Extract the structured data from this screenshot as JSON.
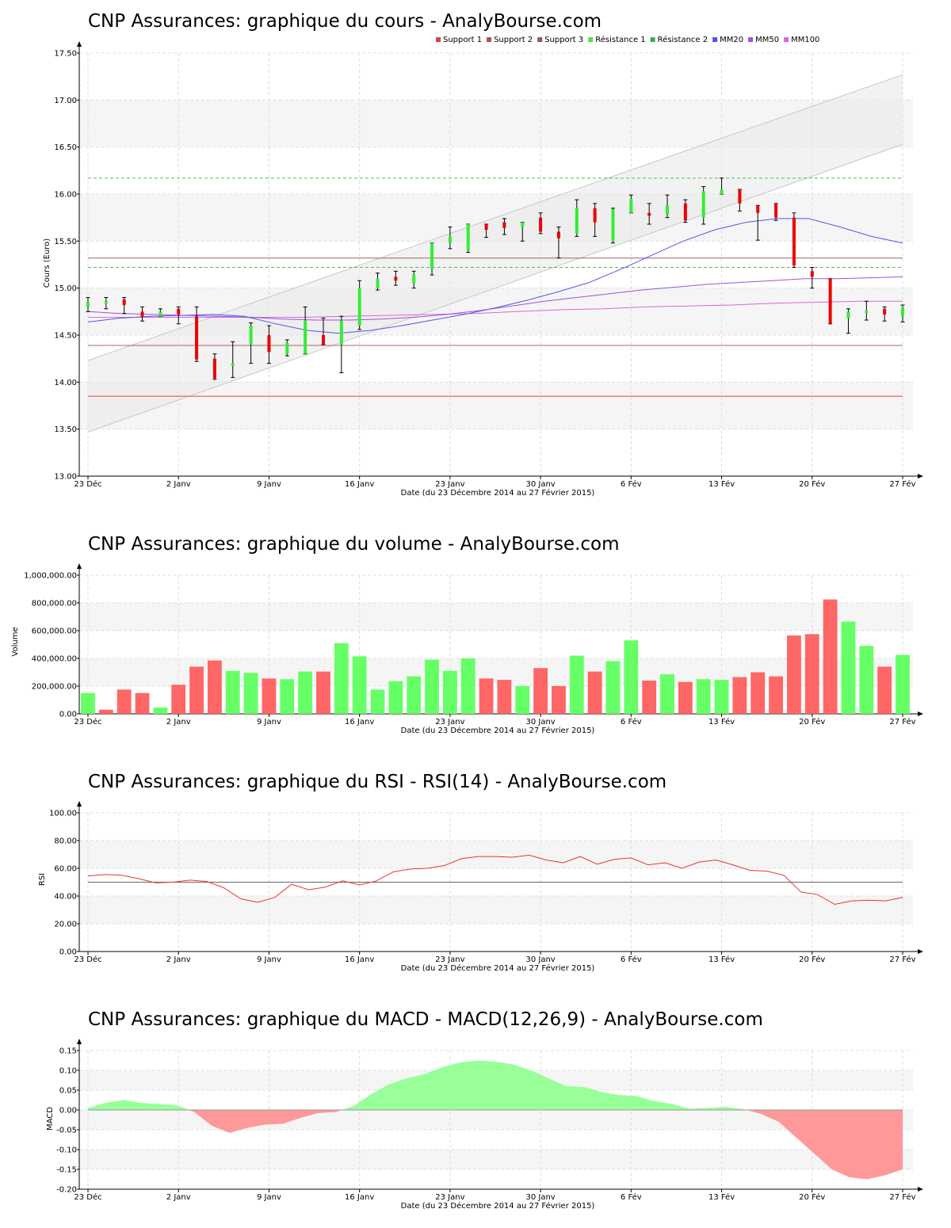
{
  "x_ticks": [
    "23 Déc",
    "2 Janv",
    "9 Janv",
    "16 Janv",
    "23 Janv",
    "30 Janv",
    "6 Fév",
    "13 Fév",
    "20 Fév",
    "27 Fév"
  ],
  "x_label": "Date (du 23 Décembre 2014 au 27 Février 2015)",
  "colors": {
    "up": "#33ee33",
    "down": "#ee0000",
    "vol_up": "#66ff66",
    "vol_down": "#ff6666"
  },
  "chart_data": [
    {
      "type": "candlestick",
      "title": "CNP Assurances: graphique du cours - AnalyBourse.com",
      "ylabel": "Cours (Euro)",
      "ylim": [
        13.0,
        17.5
      ],
      "y_ticks": [
        "13.00",
        "13.50",
        "14.00",
        "14.50",
        "15.00",
        "15.50",
        "16.00",
        "16.50",
        "17.00",
        "17.50"
      ],
      "legend": [
        {
          "name": "Support 1",
          "color": "#dd4444"
        },
        {
          "name": "Support 2",
          "color": "#aa5555"
        },
        {
          "name": "Support 3",
          "color": "#995555"
        },
        {
          "name": "Résistance 1",
          "color": "#55dd55"
        },
        {
          "name": "Résistance 2",
          "color": "#44aa44"
        },
        {
          "name": "MM20",
          "color": "#5555ee"
        },
        {
          "name": "MM50",
          "color": "#9955dd"
        },
        {
          "name": "MM100",
          "color": "#dd66dd"
        }
      ],
      "candles": [
        {
          "o": 14.8,
          "h": 14.9,
          "l": 14.75,
          "c": 14.85
        },
        {
          "o": 14.85,
          "h": 14.9,
          "l": 14.78,
          "c": 14.86
        },
        {
          "o": 14.88,
          "h": 14.9,
          "l": 14.73,
          "c": 14.82
        },
        {
          "o": 14.75,
          "h": 14.8,
          "l": 14.65,
          "c": 14.7
        },
        {
          "o": 14.7,
          "h": 14.78,
          "l": 14.7,
          "c": 14.75
        },
        {
          "o": 14.78,
          "h": 14.8,
          "l": 14.62,
          "c": 14.72
        },
        {
          "o": 14.7,
          "h": 14.8,
          "l": 14.22,
          "c": 14.24
        },
        {
          "o": 14.25,
          "h": 14.3,
          "l": 14.03,
          "c": 14.04
        },
        {
          "o": 14.18,
          "h": 14.43,
          "l": 14.05,
          "c": 14.2
        },
        {
          "o": 14.4,
          "h": 14.63,
          "l": 14.2,
          "c": 14.6
        },
        {
          "o": 14.5,
          "h": 14.6,
          "l": 14.2,
          "c": 14.32
        },
        {
          "o": 14.3,
          "h": 14.45,
          "l": 14.28,
          "c": 14.42
        },
        {
          "o": 14.3,
          "h": 14.8,
          "l": 14.3,
          "c": 14.65
        },
        {
          "o": 14.5,
          "h": 14.68,
          "l": 14.4,
          "c": 14.4
        },
        {
          "o": 14.4,
          "h": 14.7,
          "l": 14.1,
          "c": 14.65
        },
        {
          "o": 14.6,
          "h": 15.08,
          "l": 14.56,
          "c": 15.0
        },
        {
          "o": 15.0,
          "h": 15.16,
          "l": 14.98,
          "c": 15.1
        },
        {
          "o": 15.12,
          "h": 15.18,
          "l": 15.03,
          "c": 15.08
        },
        {
          "o": 15.05,
          "h": 15.18,
          "l": 15.0,
          "c": 15.15
        },
        {
          "o": 15.2,
          "h": 15.48,
          "l": 15.14,
          "c": 15.48
        },
        {
          "o": 15.48,
          "h": 15.65,
          "l": 15.42,
          "c": 15.55
        },
        {
          "o": 15.4,
          "h": 15.68,
          "l": 15.38,
          "c": 15.68
        },
        {
          "o": 15.68,
          "h": 15.68,
          "l": 15.54,
          "c": 15.62
        },
        {
          "o": 15.7,
          "h": 15.74,
          "l": 15.57,
          "c": 15.64
        },
        {
          "o": 15.65,
          "h": 15.7,
          "l": 15.5,
          "c": 15.7
        },
        {
          "o": 15.75,
          "h": 15.8,
          "l": 15.58,
          "c": 15.6
        },
        {
          "o": 15.6,
          "h": 15.65,
          "l": 15.32,
          "c": 15.53
        },
        {
          "o": 15.58,
          "h": 15.94,
          "l": 15.55,
          "c": 15.85
        },
        {
          "o": 15.85,
          "h": 15.9,
          "l": 15.55,
          "c": 15.7
        },
        {
          "o": 15.5,
          "h": 15.85,
          "l": 15.48,
          "c": 15.84
        },
        {
          "o": 15.8,
          "h": 15.99,
          "l": 15.8,
          "c": 15.95
        },
        {
          "o": 15.8,
          "h": 15.9,
          "l": 15.68,
          "c": 15.77
        },
        {
          "o": 15.78,
          "h": 15.99,
          "l": 15.75,
          "c": 15.88
        },
        {
          "o": 15.9,
          "h": 15.94,
          "l": 15.7,
          "c": 15.72
        },
        {
          "o": 15.75,
          "h": 16.08,
          "l": 15.68,
          "c": 16.03
        },
        {
          "o": 16.0,
          "h": 16.17,
          "l": 16.0,
          "c": 16.05
        },
        {
          "o": 16.05,
          "h": 16.05,
          "l": 15.82,
          "c": 15.9
        },
        {
          "o": 15.88,
          "h": 15.88,
          "l": 15.51,
          "c": 15.8
        },
        {
          "o": 15.9,
          "h": 15.9,
          "l": 15.72,
          "c": 15.75
        },
        {
          "o": 15.75,
          "h": 15.8,
          "l": 15.22,
          "c": 15.24
        },
        {
          "o": 15.18,
          "h": 15.22,
          "l": 15.0,
          "c": 15.12
        },
        {
          "o": 15.1,
          "h": 15.1,
          "l": 14.62,
          "c": 14.62
        },
        {
          "o": 14.68,
          "h": 14.78,
          "l": 14.52,
          "c": 14.75
        },
        {
          "o": 14.75,
          "h": 14.86,
          "l": 14.66,
          "c": 14.76
        },
        {
          "o": 14.78,
          "h": 14.8,
          "l": 14.65,
          "c": 14.72
        },
        {
          "o": 14.7,
          "h": 14.82,
          "l": 14.64,
          "c": 14.8
        }
      ],
      "levels": {
        "support1": 13.85,
        "support2": 14.39,
        "support3": 15.32,
        "resistance1": 15.22,
        "resistance2": 16.17
      },
      "channel": {
        "lower": [
          13.47,
          16.53
        ],
        "upper": [
          14.23,
          17.27
        ]
      },
      "mm20": [
        14.64,
        14.68,
        14.7,
        14.71,
        14.72,
        14.7,
        14.62,
        14.55,
        14.52,
        14.55,
        14.6,
        14.66,
        14.72,
        14.79,
        14.87,
        14.96,
        15.06,
        15.2,
        15.35,
        15.5,
        15.62,
        15.7,
        15.74,
        15.74,
        15.65,
        15.55,
        15.48
      ],
      "mm50": [
        14.75,
        14.73,
        14.72,
        14.71,
        14.7,
        14.69,
        14.67,
        14.66,
        14.66,
        14.67,
        14.69,
        14.72,
        14.76,
        14.81,
        14.86,
        14.9,
        14.94,
        14.98,
        15.01,
        15.04,
        15.06,
        15.08,
        15.1,
        15.1,
        15.11,
        15.12
      ],
      "mm100": [
        14.69,
        14.69,
        14.69,
        14.69,
        14.69,
        14.69,
        14.7,
        14.71,
        14.72,
        14.73,
        14.75,
        14.77,
        14.78,
        14.8,
        14.81,
        14.82,
        14.84,
        14.85,
        14.86,
        14.86
      ]
    },
    {
      "type": "bar",
      "title": "CNP Assurances: graphique du volume - AnalyBourse.com",
      "ylabel": "Volume",
      "ylim": [
        0,
        1000000
      ],
      "y_ticks": [
        "0.00",
        "200,000.00",
        "400,000.00",
        "600,000.00",
        "800,000.00",
        "1,000,000.00"
      ],
      "values": [
        150000,
        30000,
        175000,
        150000,
        45000,
        210000,
        340000,
        385000,
        310000,
        295000,
        255000,
        250000,
        305000,
        305000,
        510000,
        415000,
        175000,
        235000,
        270000,
        390000,
        310000,
        400000,
        255000,
        245000,
        200000,
        330000,
        200000,
        420000,
        305000,
        380000,
        530000,
        240000,
        285000,
        230000,
        250000,
        245000,
        265000,
        300000,
        270000,
        565000,
        575000,
        825000,
        665000,
        490000,
        340000,
        425000
      ],
      "up": [
        1,
        0,
        0,
        0,
        1,
        0,
        0,
        0,
        1,
        1,
        0,
        1,
        1,
        0,
        1,
        1,
        1,
        1,
        1,
        1,
        1,
        1,
        0,
        0,
        1,
        0,
        0,
        1,
        0,
        1,
        1,
        0,
        1,
        0,
        1,
        1,
        0,
        0,
        0,
        0,
        0,
        0,
        1,
        1,
        0,
        1
      ]
    },
    {
      "type": "line",
      "title": "CNP Assurances: graphique du RSI - RSI(14) - AnalyBourse.com",
      "ylabel": "RSI",
      "ylim": [
        0,
        100
      ],
      "y_ticks": [
        "0.00",
        "20.00",
        "40.00",
        "60.00",
        "80.00",
        "100.00"
      ],
      "reference": 50,
      "values": [
        54.5,
        55.5,
        55.0,
        52.5,
        49.5,
        50.0,
        51.5,
        50.5,
        46.0,
        38.0,
        35.5,
        39.0,
        48.5,
        44.5,
        46.5,
        51.0,
        48.0,
        51.0,
        57.5,
        59.5,
        60.0,
        62.0,
        67.0,
        68.5,
        68.5,
        68.0,
        69.5,
        66.0,
        64.0,
        68.5,
        63.0,
        66.5,
        67.5,
        62.5,
        64.0,
        60.0,
        64.5,
        66.0,
        62.5,
        58.5,
        58.0,
        55.0,
        43.0,
        41.0,
        34.0,
        36.5,
        37.0,
        36.5,
        39.0
      ]
    },
    {
      "type": "area",
      "title": "CNP Assurances: graphique du MACD - MACD(12,26,9) - AnalyBourse.com",
      "ylabel": "MACD",
      "ylim": [
        -0.2,
        0.15
      ],
      "y_ticks": [
        "-0.20",
        "-0.15",
        "-0.10",
        "-0.05",
        "0.00",
        "0.05",
        "0.10",
        "0.15"
      ],
      "values": [
        0.005,
        0.018,
        0.025,
        0.018,
        0.015,
        0.012,
        -0.005,
        -0.04,
        -0.058,
        -0.045,
        -0.037,
        -0.035,
        -0.02,
        -0.008,
        -0.005,
        0.01,
        0.04,
        0.065,
        0.08,
        0.09,
        0.108,
        0.12,
        0.125,
        0.122,
        0.115,
        0.1,
        0.08,
        0.06,
        0.058,
        0.045,
        0.038,
        0.035,
        0.022,
        0.015,
        0.003,
        0.005,
        0.008,
        0.002,
        -0.01,
        -0.03,
        -0.07,
        -0.11,
        -0.15,
        -0.17,
        -0.175,
        -0.165,
        -0.15
      ]
    }
  ]
}
